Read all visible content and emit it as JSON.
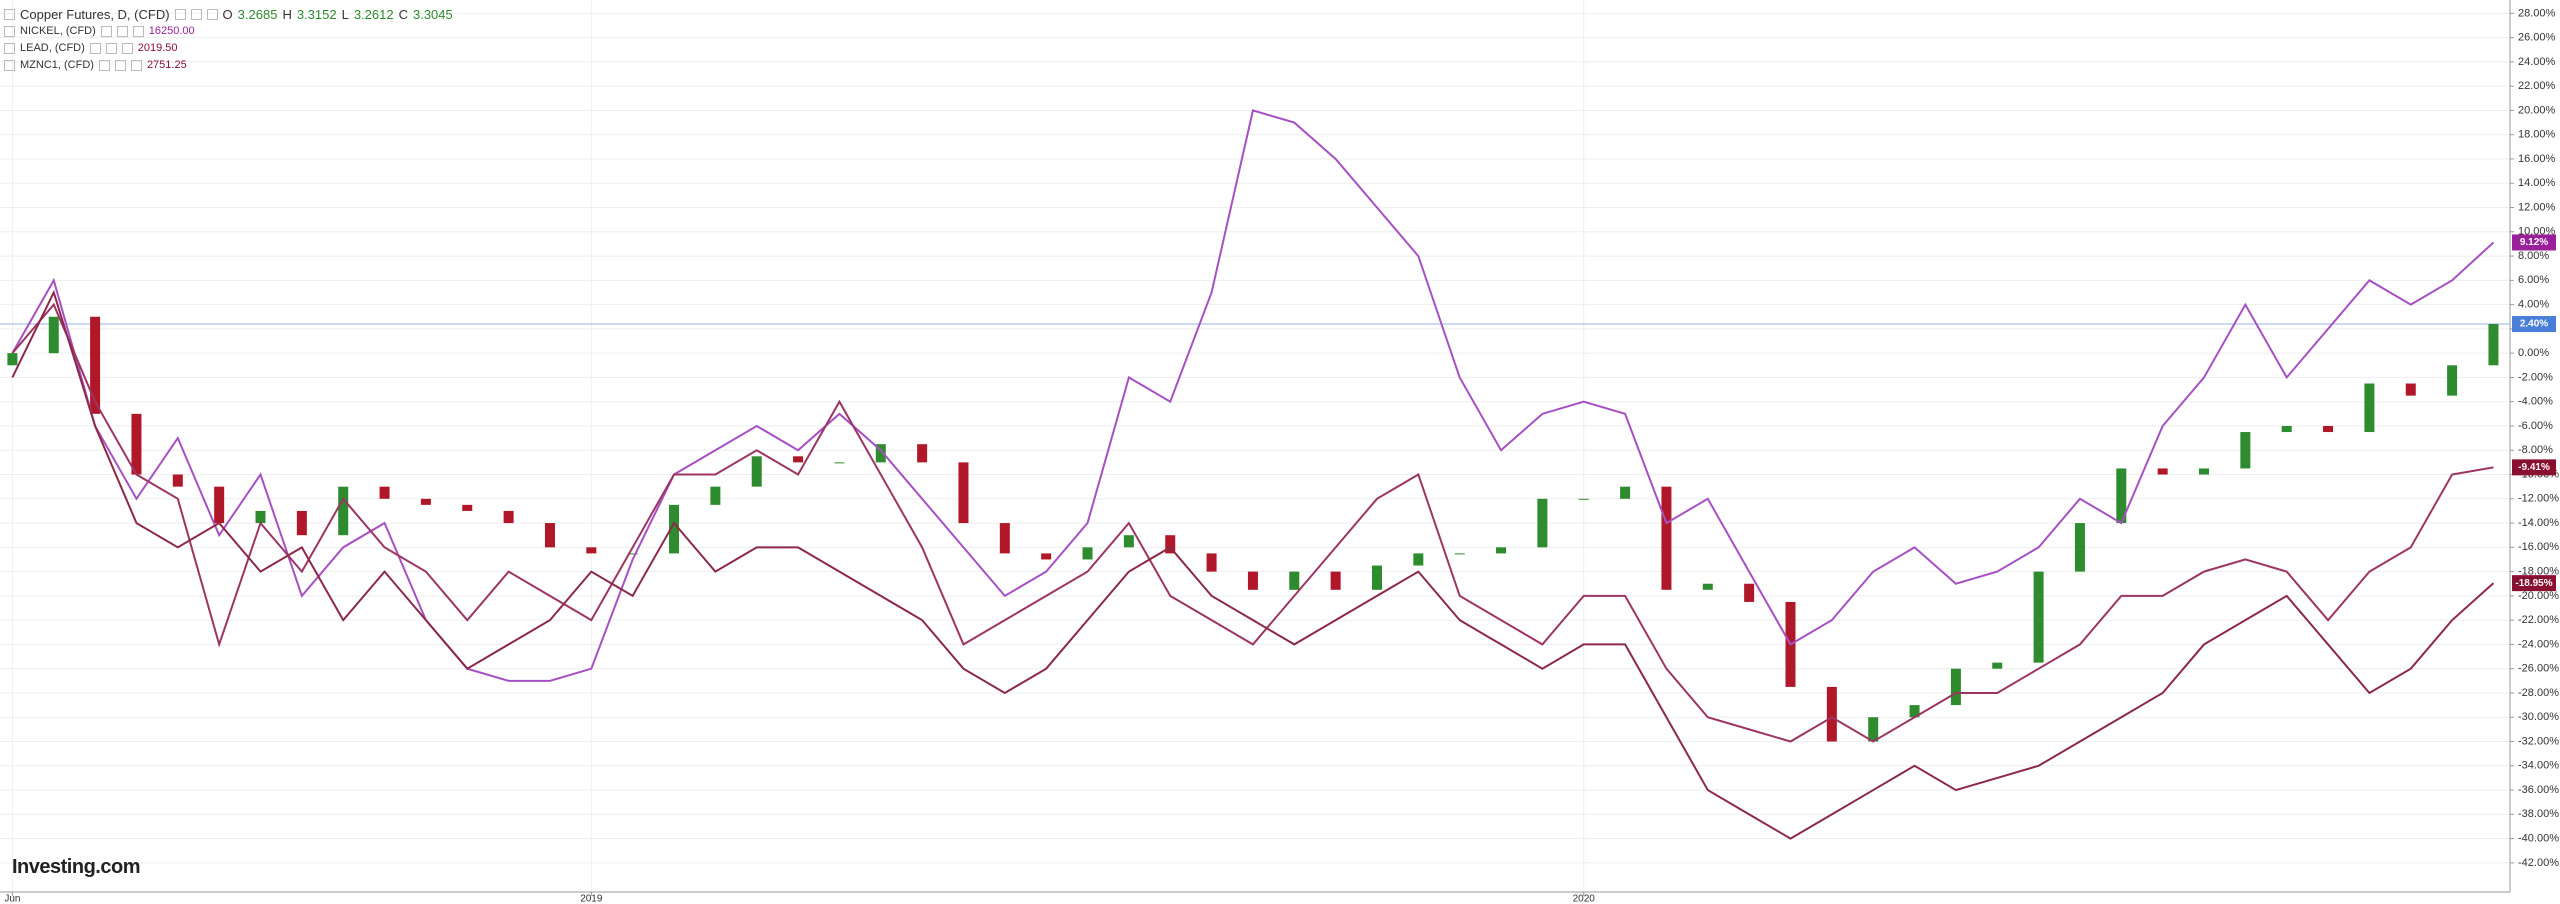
{
  "chart_data": {
    "type": "candlestick-compare",
    "legend": [
      {
        "name": "Copper Futures, D, (CFD)",
        "ohlc": [
          {
            "label": "O",
            "value": "3.2685"
          },
          {
            "label": "H",
            "value": "3.3152"
          },
          {
            "label": "L",
            "value": "3.2612"
          },
          {
            "label": "C",
            "value": "3.3045"
          }
        ]
      },
      {
        "name": "NICKEL, (CFD)",
        "value": "16250.00"
      },
      {
        "name": "LEAD, (CFD)",
        "value": "2019.50"
      },
      {
        "name": "MZNC1, (CFD)",
        "value": "2751.25"
      }
    ],
    "logo": "Investing.com",
    "x": [
      0,
      0.5,
      1,
      1.5,
      2,
      2.5,
      3,
      3.5,
      4,
      4.5,
      5,
      5.5,
      6,
      6.5,
      7,
      7.5,
      8,
      8.5,
      9,
      9.5,
      10,
      10.5,
      11,
      11.5,
      12,
      12.5,
      13,
      13.5,
      14,
      14.5,
      15,
      15.5,
      16,
      16.5,
      17,
      17.5,
      18,
      18.5,
      19,
      19.5,
      20,
      20.5,
      21,
      21.5,
      22,
      22.5,
      23,
      23.5,
      24,
      24.5,
      25,
      25.5,
      26,
      26.5,
      27,
      27.5,
      28,
      28.5,
      29,
      29.5,
      30
    ],
    "xlim": [
      -0.15,
      30.2
    ],
    "xticks": [
      {
        "value": 0,
        "label": "Jun"
      },
      {
        "value": 7,
        "label": "2019"
      },
      {
        "value": 19,
        "label": "2020"
      }
    ],
    "ylim": [
      -44.4,
      29.1
    ],
    "yticks": [
      {
        "value": 28,
        "label": "28.00%"
      },
      {
        "value": 26,
        "label": "26.00%"
      },
      {
        "value": 24,
        "label": "24.00%"
      },
      {
        "value": 22,
        "label": "22.00%"
      },
      {
        "value": 20,
        "label": "20.00%"
      },
      {
        "value": 18,
        "label": "18.00%"
      },
      {
        "value": 16,
        "label": "16.00%"
      },
      {
        "value": 14,
        "label": "14.00%"
      },
      {
        "value": 12,
        "label": "12.00%"
      },
      {
        "value": 10,
        "label": "10.00%"
      },
      {
        "value": 8,
        "label": "8.00%"
      },
      {
        "value": 6,
        "label": "6.00%"
      },
      {
        "value": 4,
        "label": "4.00%"
      },
      {
        "value": 2,
        "label": "2.00%"
      },
      {
        "value": 0,
        "label": "0.00%"
      },
      {
        "value": -2,
        "label": "-2.00%"
      },
      {
        "value": -4,
        "label": "-4.00%"
      },
      {
        "value": -6,
        "label": "-6.00%"
      },
      {
        "value": -8,
        "label": "-8.00%"
      },
      {
        "value": -10,
        "label": "-10.00%"
      },
      {
        "value": -12,
        "label": "-12.00%"
      },
      {
        "value": -14,
        "label": "-14.00%"
      },
      {
        "value": -16,
        "label": "-16.00%"
      },
      {
        "value": -18,
        "label": "-18.00%"
      },
      {
        "value": -20,
        "label": "-20.00%"
      },
      {
        "value": -22,
        "label": "-22.00%"
      },
      {
        "value": -24,
        "label": "-24.00%"
      },
      {
        "value": -26,
        "label": "-26.00%"
      },
      {
        "value": -28,
        "label": "-28.00%"
      },
      {
        "value": -30,
        "label": "-30.00%"
      },
      {
        "value": -32,
        "label": "-32.00%"
      },
      {
        "value": -34,
        "label": "-34.00%"
      },
      {
        "value": -36,
        "label": "-36.00%"
      },
      {
        "value": -38,
        "label": "-38.00%"
      },
      {
        "value": -40,
        "label": "-40.00%"
      },
      {
        "value": -42,
        "label": "-42.00%"
      }
    ],
    "grid": true,
    "hline": {
      "value": 2.4,
      "color": "#90b4e8"
    },
    "series": [
      {
        "name": "Copper Futures",
        "kind": "candle",
        "color": "#2e8b2e",
        "down_color": "#b0182a",
        "label_color": "#4a7fd9",
        "last_label": "2.40%",
        "open": [
          -1,
          0,
          3,
          -5,
          -10,
          -11,
          -14,
          -13,
          -15,
          -11,
          -12,
          -12.5,
          -13,
          -14,
          -16,
          -16.5,
          -16.5,
          -12.5,
          -11,
          -8.5,
          -9,
          -9,
          -7.5,
          -9,
          -14,
          -16.5,
          -17,
          -16,
          -15,
          -16.5,
          -18,
          -19.5,
          -18,
          -19.5,
          -17.5,
          -16.5,
          -16.5,
          -16,
          -12,
          -12,
          -11,
          -19.5,
          -19,
          -20.5,
          -27.5,
          -32,
          -30,
          -29,
          -26,
          -25.5,
          -18,
          -14,
          -9.5,
          -10,
          -9.5,
          -6.5,
          -6,
          -6.5,
          -2.5,
          -3.5,
          -1
        ],
        "close": [
          0,
          3,
          -5,
          -10,
          -11,
          -14,
          -13,
          -15,
          -11,
          -12,
          -12.5,
          -13,
          -14,
          -16,
          -16.5,
          -16.5,
          -12.5,
          -11,
          -8.5,
          -9,
          -9,
          -7.5,
          -9,
          -14,
          -16.5,
          -17,
          -16,
          -15,
          -16.5,
          -18,
          -19.5,
          -18,
          -19.5,
          -17.5,
          -16.5,
          -16.5,
          -16,
          -12,
          -12,
          -11,
          -19.5,
          -19,
          -20.5,
          -27.5,
          -32,
          -30,
          -29,
          -26,
          -25.5,
          -18,
          -14,
          -9.5,
          -10,
          -9.5,
          -6.5,
          -6,
          -6.5,
          -2.5,
          -3.5,
          -1,
          2.4
        ]
      },
      {
        "name": "NICKEL",
        "kind": "line",
        "color": "#a650c4",
        "label_color": "#9a1f9a",
        "last_label": "9.12%",
        "values": [
          0,
          6,
          -6,
          -12,
          -7,
          -15,
          -10,
          -20,
          -16,
          -14,
          -22,
          -26,
          -27,
          -27,
          -26,
          -17,
          -10,
          -8,
          -6,
          -8,
          -5,
          -8,
          -12,
          -16,
          -20,
          -18,
          -14,
          -2,
          -4,
          5,
          20,
          19,
          16,
          12,
          8,
          -2,
          -8,
          -5,
          -4,
          -5,
          -14,
          -12,
          -18,
          -24,
          -22,
          -18,
          -16,
          -19,
          -18,
          -16,
          -12,
          -14,
          -6,
          -2,
          4,
          -2,
          2,
          6,
          4,
          6,
          9.12
        ]
      },
      {
        "name": "LEAD",
        "kind": "line",
        "color": "#9c3563",
        "label_color": "#8a1030",
        "last_label": "-9.41%",
        "values": [
          0,
          4,
          -4,
          -10,
          -12,
          -24,
          -14,
          -18,
          -12,
          -16,
          -18,
          -22,
          -18,
          -20,
          -22,
          -16,
          -10,
          -10,
          -8,
          -10,
          -4,
          -10,
          -16,
          -24,
          -22,
          -20,
          -18,
          -14,
          -20,
          -22,
          -24,
          -20,
          -16,
          -12,
          -10,
          -20,
          -22,
          -24,
          -20,
          -20,
          -26,
          -30,
          -31,
          -32,
          -30,
          -32,
          -30,
          -28,
          -28,
          -26,
          -24,
          -20,
          -20,
          -18,
          -17,
          -18,
          -22,
          -18,
          -16,
          -10,
          -9.41
        ]
      },
      {
        "name": "MZNC1",
        "kind": "line",
        "color": "#8c2848",
        "label_color": "#8a1030",
        "last_label": "-18.95%",
        "values": [
          -2,
          5,
          -6,
          -14,
          -16,
          -14,
          -18,
          -16,
          -22,
          -18,
          -22,
          -26,
          -24,
          -22,
          -18,
          -20,
          -14,
          -18,
          -16,
          -16,
          -18,
          -20,
          -22,
          -26,
          -28,
          -26,
          -22,
          -18,
          -16,
          -20,
          -22,
          -24,
          -22,
          -20,
          -18,
          -22,
          -24,
          -26,
          -24,
          -24,
          -30,
          -36,
          -38,
          -40,
          -38,
          -36,
          -34,
          -36,
          -35,
          -34,
          -32,
          -30,
          -28,
          -24,
          -22,
          -20,
          -24,
          -28,
          -26,
          -22,
          -18.95
        ]
      }
    ]
  }
}
